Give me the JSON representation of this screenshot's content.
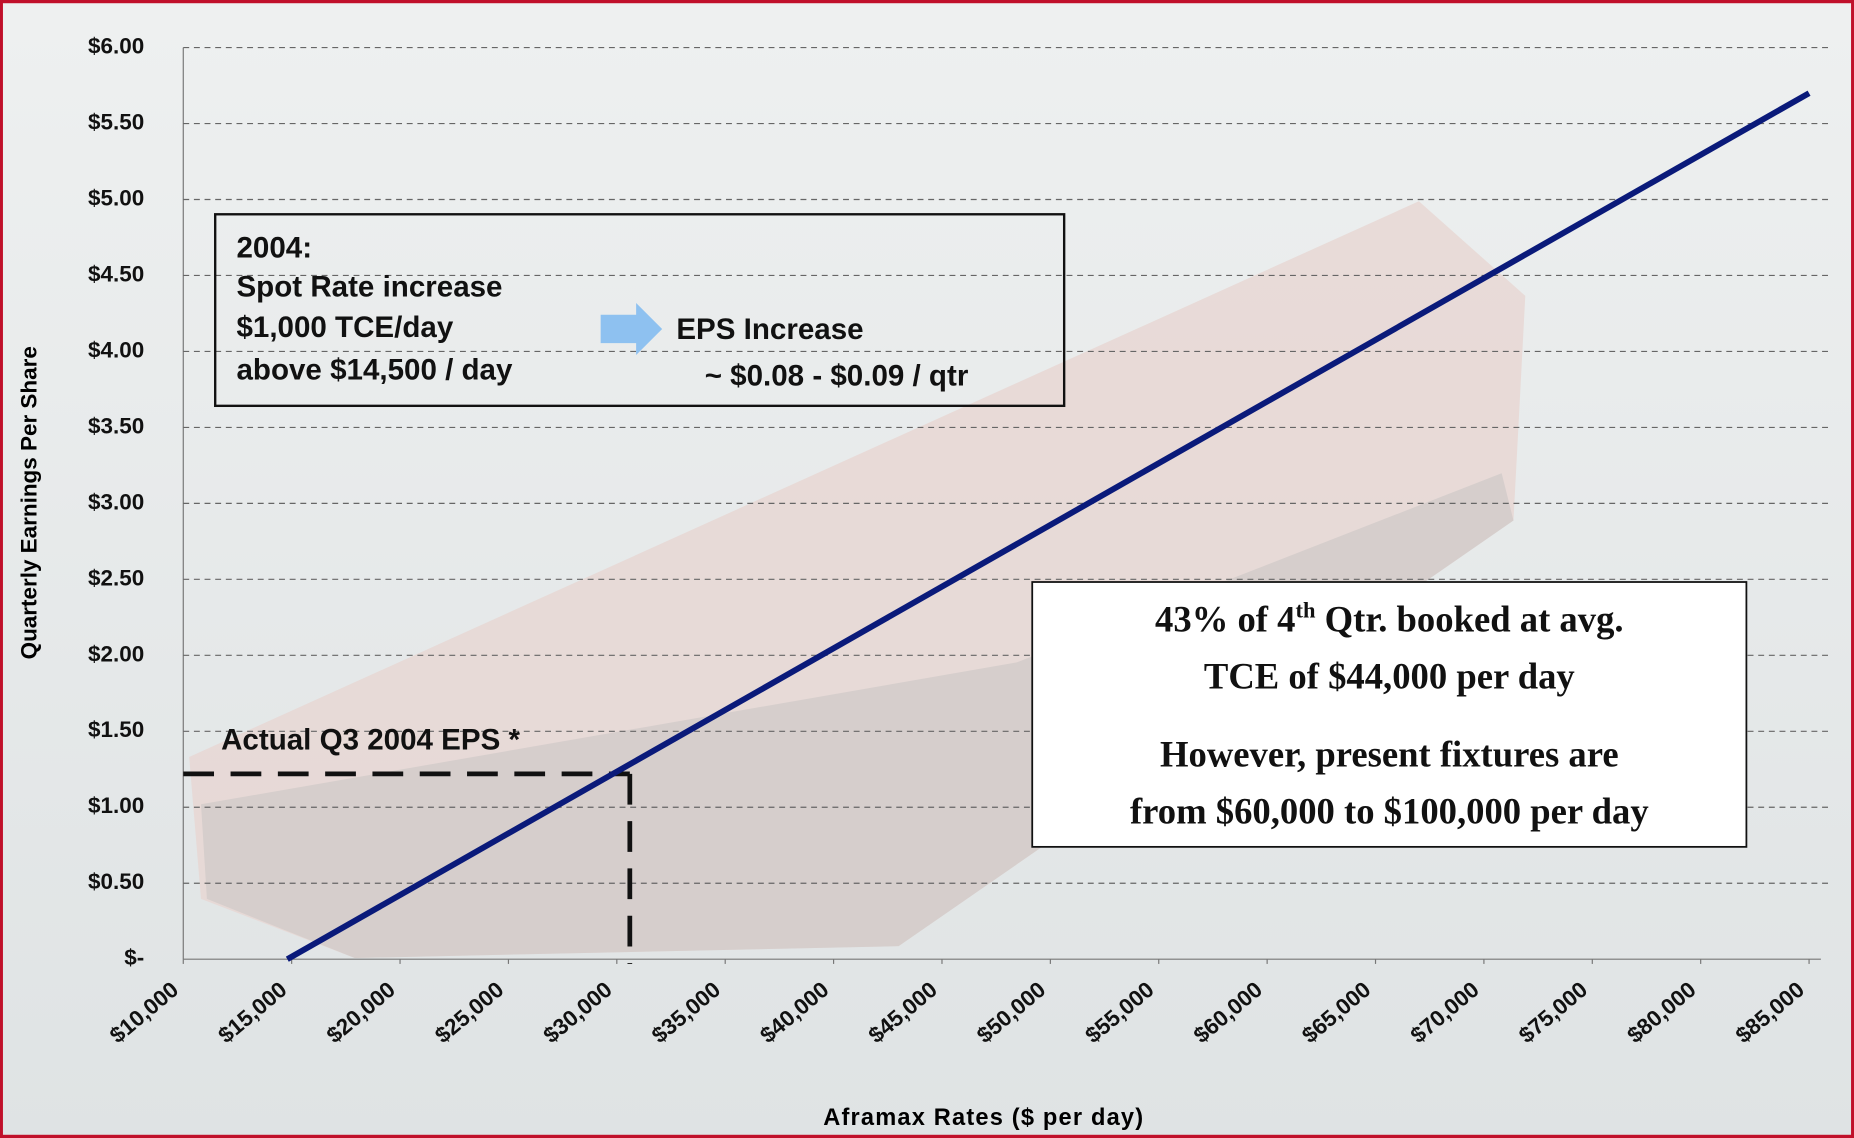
{
  "chart_data": {
    "type": "line",
    "x_label": "Aframax Rates ($ per day)",
    "y_label": "Quarterly Earnings Per Share",
    "xlim": [
      10000,
      85000
    ],
    "xticks": [
      {
        "value": 10000,
        "label": "$10,000"
      },
      {
        "value": 15000,
        "label": "$15,000"
      },
      {
        "value": 20000,
        "label": "$20,000"
      },
      {
        "value": 25000,
        "label": "$25,000"
      },
      {
        "value": 30000,
        "label": "$30,000"
      },
      {
        "value": 35000,
        "label": "$35,000"
      },
      {
        "value": 40000,
        "label": "$40,000"
      },
      {
        "value": 45000,
        "label": "$45,000"
      },
      {
        "value": 50000,
        "label": "$50,000"
      },
      {
        "value": 55000,
        "label": "$55,000"
      },
      {
        "value": 60000,
        "label": "$60,000"
      },
      {
        "value": 65000,
        "label": "$65,000"
      },
      {
        "value": 70000,
        "label": "$70,000"
      },
      {
        "value": 75000,
        "label": "$75,000"
      },
      {
        "value": 80000,
        "label": "$80,000"
      },
      {
        "value": 85000,
        "label": "$85,000"
      }
    ],
    "ylim": [
      0,
      6
    ],
    "yticks": [
      {
        "value": 0,
        "label": "$-"
      },
      {
        "value": 0.5,
        "label": "$0.50"
      },
      {
        "value": 1,
        "label": "$1.00"
      },
      {
        "value": 1.5,
        "label": "$1.50"
      },
      {
        "value": 2,
        "label": "$2.00"
      },
      {
        "value": 2.5,
        "label": "$2.50"
      },
      {
        "value": 3,
        "label": "$3.00"
      },
      {
        "value": 3.5,
        "label": "$3.50"
      },
      {
        "value": 4,
        "label": "$4.00"
      },
      {
        "value": 4.5,
        "label": "$4.50"
      },
      {
        "value": 5,
        "label": "$5.00"
      },
      {
        "value": 5.5,
        "label": "$5.50"
      },
      {
        "value": 6,
        "label": "$6.00"
      }
    ],
    "grid": true,
    "series": [
      {
        "color": "#0a1a7a",
        "x": [
          14800,
          85000
        ],
        "values": [
          0,
          5.7
        ]
      }
    ],
    "reference": {
      "label": "Actual Q3 2004 EPS *",
      "x": 30600,
      "y": 1.22
    },
    "box1": {
      "lines": [
        "2004:",
        "Spot Rate increase",
        "$1,000 TCE/day",
        "above $14,500 / day"
      ],
      "result": [
        "EPS Increase",
        "~ $0.08 - $0.09 / qtr"
      ]
    },
    "box2": {
      "line1": [
        "43% of 4",
        "th",
        " Qtr. booked at avg."
      ],
      "line2": "TCE of $44,000 per day",
      "line3": "However, present fixtures are",
      "line4": "from $60,000 to $100,000 per day"
    }
  }
}
